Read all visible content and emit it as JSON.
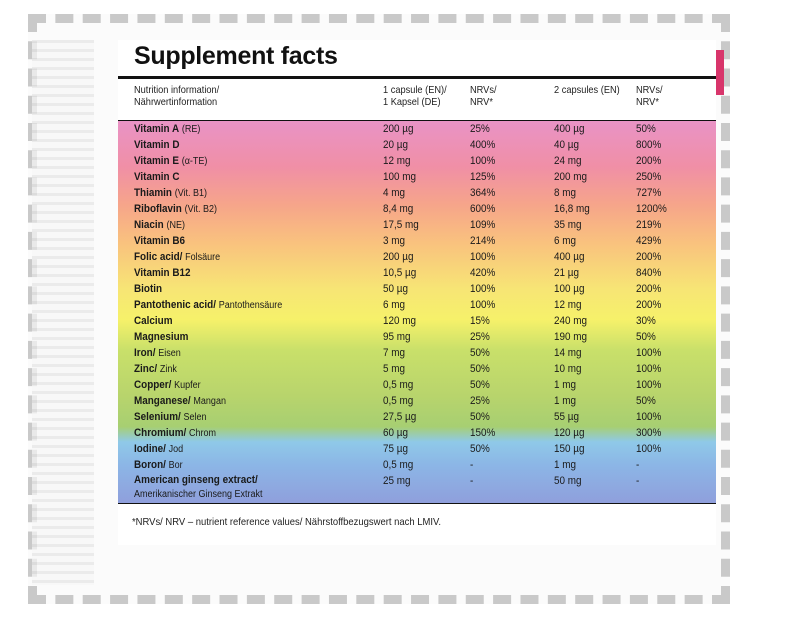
{
  "title": "Supplement facts",
  "header": {
    "nutrition": [
      "Nutrition information/",
      "Nährwertinformation"
    ],
    "dose1": [
      "1 capsule (EN)/",
      "1 Kapsel (DE)"
    ],
    "nrv1": [
      "NRVs/",
      "NRV*"
    ],
    "dose2": [
      "2 capsules (EN)"
    ],
    "nrv2": [
      "NRVs/",
      "NRV*"
    ]
  },
  "rows": [
    {
      "name": "Vitamin A",
      "note": "(RE)",
      "dose1": "200 µg",
      "nrv1": "25%",
      "dose2": "400 µg",
      "nrv2": "50%"
    },
    {
      "name": "Vitamin D",
      "note": "",
      "dose1": "20 µg",
      "nrv1": "400%",
      "dose2": "40 µg",
      "nrv2": "800%"
    },
    {
      "name": "Vitamin E",
      "note": "(α-TE)",
      "dose1": "12 mg",
      "nrv1": "100%",
      "dose2": "24 mg",
      "nrv2": "200%"
    },
    {
      "name": "Vitamin C",
      "note": "",
      "dose1": "100 mg",
      "nrv1": "125%",
      "dose2": "200 mg",
      "nrv2": "250%"
    },
    {
      "name": "Thiamin",
      "note": "(Vit. B1)",
      "dose1": "4 mg",
      "nrv1": "364%",
      "dose2": "8 mg",
      "nrv2": "727%"
    },
    {
      "name": "Riboflavin",
      "note": "(Vit. B2)",
      "dose1": "8,4 mg",
      "nrv1": "600%",
      "dose2": "16,8 mg",
      "nrv2": "1200%"
    },
    {
      "name": "Niacin",
      "note": "(NE)",
      "dose1": "17,5 mg",
      "nrv1": "109%",
      "dose2": "35 mg",
      "nrv2": "219%"
    },
    {
      "name": "Vitamin B6",
      "note": "",
      "dose1": "3 mg",
      "nrv1": "214%",
      "dose2": "6 mg",
      "nrv2": "429%"
    },
    {
      "name": "Folic acid/",
      "note": "Folsäure",
      "dose1": "200 µg",
      "nrv1": "100%",
      "dose2": "400 µg",
      "nrv2": "200%"
    },
    {
      "name": "Vitamin B12",
      "note": "",
      "dose1": "10,5 µg",
      "nrv1": "420%",
      "dose2": "21 µg",
      "nrv2": "840%"
    },
    {
      "name": "Biotin",
      "note": "",
      "dose1": "50 µg",
      "nrv1": "100%",
      "dose2": "100 µg",
      "nrv2": "200%"
    },
    {
      "name": "Pantothenic acid/",
      "note": "Pantothensäure",
      "dose1": "6 mg",
      "nrv1": "100%",
      "dose2": "12 mg",
      "nrv2": "200%"
    },
    {
      "name": "Calcium",
      "note": "",
      "dose1": "120 mg",
      "nrv1": "15%",
      "dose2": "240 mg",
      "nrv2": "30%"
    },
    {
      "name": "Magnesium",
      "note": "",
      "dose1": "95 mg",
      "nrv1": "25%",
      "dose2": "190 mg",
      "nrv2": "50%"
    },
    {
      "name": "Iron/",
      "note": "Eisen",
      "dose1": "7 mg",
      "nrv1": "50%",
      "dose2": "14 mg",
      "nrv2": "100%"
    },
    {
      "name": "Zinc/",
      "note": "Zink",
      "dose1": "5 mg",
      "nrv1": "50%",
      "dose2": "10 mg",
      "nrv2": "100%"
    },
    {
      "name": "Copper/",
      "note": "Kupfer",
      "dose1": "0,5 mg",
      "nrv1": "50%",
      "dose2": "1 mg",
      "nrv2": "100%"
    },
    {
      "name": "Manganese/",
      "note": "Mangan",
      "dose1": "0,5 mg",
      "nrv1": "25%",
      "dose2": "1 mg",
      "nrv2": "50%"
    },
    {
      "name": "Selenium/",
      "note": "Selen",
      "dose1": "27,5 µg",
      "nrv1": "50%",
      "dose2": "55 µg",
      "nrv2": "100%"
    },
    {
      "name": "Chromium/",
      "note": "Chrom",
      "dose1": "60 µg",
      "nrv1": "150%",
      "dose2": "120 µg",
      "nrv2": "300%"
    },
    {
      "name": "Iodine/",
      "note": "Jod",
      "dose1": "75 µg",
      "nrv1": "50%",
      "dose2": "150 µg",
      "nrv2": "100%"
    },
    {
      "name": "Boron/",
      "note": "Bor",
      "dose1": "0,5 mg",
      "nrv1": "-",
      "dose2": "1 mg",
      "nrv2": "-"
    },
    {
      "name": "American ginseng extract/",
      "note": "Amerikanischer Ginseng Extrakt",
      "dose1": "25 mg",
      "nrv1": "-",
      "dose2": "50 mg",
      "nrv2": "-"
    }
  ],
  "footnote": "*NRVs/ NRV – nutrient reference values/ Nährstoffbezugswert nach LMIV."
}
